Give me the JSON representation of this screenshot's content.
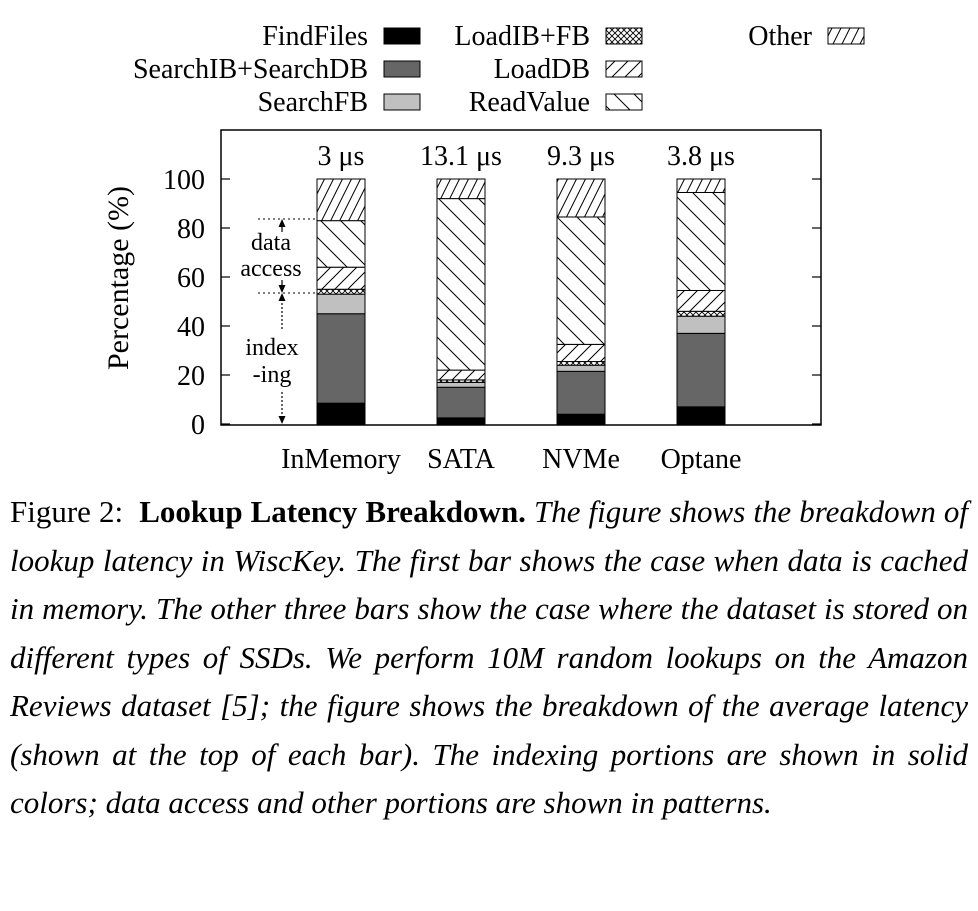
{
  "chart_data": {
    "type": "stacked-bar",
    "ylabel": "Percentage (%)",
    "ylim": [
      0,
      100
    ],
    "yticks": [
      0,
      20,
      40,
      60,
      80,
      100
    ],
    "categories": [
      "InMemory",
      "SATA",
      "NVMe",
      "Optane"
    ],
    "latency_labels": [
      "3 μs",
      "13.1 μs",
      "9.3 μs",
      "3.8 μs"
    ],
    "series": [
      {
        "name": "FindFiles",
        "pattern": "solid-black",
        "values": [
          8.5,
          2.5,
          4,
          7
        ]
      },
      {
        "name": "SearchIB+SearchDB",
        "pattern": "solid-darkgray",
        "values": [
          36.5,
          12.5,
          17.5,
          30
        ]
      },
      {
        "name": "SearchFB",
        "pattern": "solid-lightgray",
        "values": [
          8,
          2,
          2.5,
          7
        ]
      },
      {
        "name": "LoadIB+FB",
        "pattern": "crosshatch",
        "values": [
          2,
          1,
          1.5,
          2
        ]
      },
      {
        "name": "LoadDB",
        "pattern": "forward-diag",
        "values": [
          9,
          4,
          7,
          8.5
        ]
      },
      {
        "name": "ReadValue",
        "pattern": "back-diag",
        "values": [
          19,
          70,
          52,
          40
        ]
      },
      {
        "name": "Other",
        "pattern": "dense-forward-diag",
        "values": [
          17,
          8,
          15.5,
          5.5
        ]
      }
    ],
    "annotations": {
      "data_access": [
        "data",
        "access"
      ],
      "indexing": [
        "index",
        "-ing"
      ]
    },
    "colors": {
      "solid-black": "#000000",
      "solid-darkgray": "#666666",
      "solid-lightgray": "#c0c0c0"
    }
  },
  "caption": {
    "label": "Figure 2:",
    "title": "Lookup Latency Breakdown.",
    "text": "The figure shows the breakdown of lookup latency in WiscKey. The first bar shows the case when data is cached in memory. The other three bars show the case where the dataset is stored on different types of SSDs. We perform 10M random lookups on the Amazon Reviews dataset [5]; the figure shows the breakdown of the average latency (shown at the top of each bar). The indexing portions are shown in solid colors; data access and other portions are shown in patterns."
  }
}
